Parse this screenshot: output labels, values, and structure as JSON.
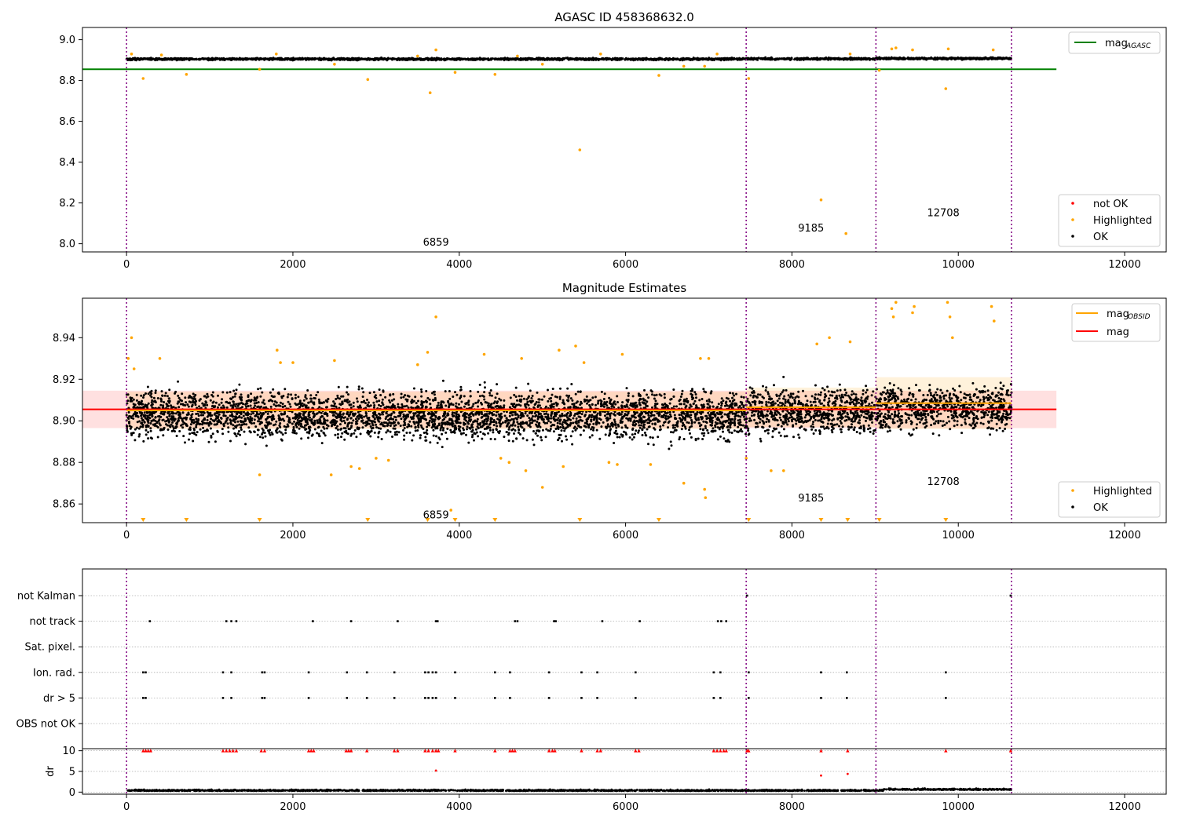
{
  "chart_data": [
    {
      "type": "scatter",
      "title": "AGASC ID 458368632.0",
      "xlim": [
        -530,
        12500
      ],
      "ylim": [
        7.96,
        9.06
      ],
      "xticks": [
        0,
        2000,
        4000,
        6000,
        8000,
        10000,
        12000
      ],
      "xtick_labels": [
        "0",
        "2000",
        "4000",
        "6000",
        "8000",
        "10000",
        "12000"
      ],
      "yticks": [
        8.0,
        8.2,
        8.4,
        8.6,
        8.8,
        9.0
      ],
      "ytick_labels": [
        "8.0",
        "8.2",
        "8.4",
        "8.6",
        "8.8",
        "9.0"
      ],
      "obs_boundaries": [
        0,
        7450,
        9010,
        10640
      ],
      "obsid_labels": [
        {
          "text": "6859",
          "x": 3720,
          "y": 8.01
        },
        {
          "text": "9185",
          "x": 8230,
          "y": 8.08
        },
        {
          "text": "12708",
          "x": 9820,
          "y": 8.155
        }
      ],
      "reference_line": {
        "name": "mag_AGASC",
        "y": 8.855,
        "x": [
          -530,
          11180
        ]
      },
      "series": [
        {
          "name": "not OK",
          "color": "#ff0000",
          "points": []
        },
        {
          "name": "Highlighted",
          "color": "#ffa500",
          "points": [
            [
              60,
              8.93
            ],
            [
              200,
              8.81
            ],
            [
              420,
              8.925
            ],
            [
              720,
              8.83
            ],
            [
              1600,
              8.855
            ],
            [
              1800,
              8.93
            ],
            [
              2500,
              8.88
            ],
            [
              2900,
              8.805
            ],
            [
              3500,
              8.92
            ],
            [
              3650,
              8.74
            ],
            [
              3720,
              8.95
            ],
            [
              3950,
              8.84
            ],
            [
              4430,
              8.83
            ],
            [
              4700,
              8.92
            ],
            [
              5000,
              8.88
            ],
            [
              5450,
              8.46
            ],
            [
              5700,
              8.93
            ],
            [
              6400,
              8.825
            ],
            [
              6700,
              8.87
            ],
            [
              6950,
              8.87
            ],
            [
              7100,
              8.93
            ],
            [
              7480,
              8.81
            ],
            [
              8350,
              8.215
            ],
            [
              8650,
              8.05
            ],
            [
              8700,
              8.93
            ],
            [
              9050,
              8.85
            ],
            [
              9200,
              8.955
            ],
            [
              9250,
              8.96
            ],
            [
              9450,
              8.95
            ],
            [
              9850,
              8.76
            ],
            [
              9880,
              8.955
            ],
            [
              10420,
              8.95
            ]
          ]
        },
        {
          "name": "OK",
          "color": "#000000",
          "band": {
            "center": 8.905,
            "halfwidth": 0.014
          }
        }
      ],
      "legends": [
        {
          "position": "upper-right",
          "entries": [
            {
              "label_main": "mag",
              "label_sub": "AGASC",
              "color": "#008000",
              "kind": "line"
            }
          ]
        },
        {
          "position": "lower-right",
          "entries": [
            {
              "label": "not OK",
              "color": "#ff0000",
              "kind": "dot"
            },
            {
              "label": "Highlighted",
              "color": "#ffa500",
              "kind": "dot"
            },
            {
              "label": "OK",
              "color": "#000000",
              "kind": "dot"
            }
          ]
        }
      ]
    },
    {
      "type": "scatter",
      "title": "Magnitude Estimates",
      "xlim": [
        -530,
        12500
      ],
      "ylim": [
        8.851,
        8.959
      ],
      "xticks": [
        0,
        2000,
        4000,
        6000,
        8000,
        10000,
        12000
      ],
      "xtick_labels": [
        "0",
        "2000",
        "4000",
        "6000",
        "8000",
        "10000",
        "12000"
      ],
      "yticks": [
        8.86,
        8.88,
        8.9,
        8.92,
        8.94
      ],
      "ytick_labels": [
        "8.86",
        "8.88",
        "8.90",
        "8.92",
        "8.94"
      ],
      "obs_boundaries": [
        0,
        7450,
        9010,
        10640
      ],
      "obsid_labels": [
        {
          "text": "6859",
          "x": 3720,
          "y": 8.855
        },
        {
          "text": "9185",
          "x": 8230,
          "y": 8.863
        },
        {
          "text": "12708",
          "x": 9820,
          "y": 8.871
        }
      ],
      "mag": {
        "value": 8.9055,
        "band": [
          8.8965,
          8.9145
        ],
        "x": [
          -530,
          11180
        ]
      },
      "mag_obsid": [
        {
          "x": [
            0,
            7450
          ],
          "value": 8.905,
          "band": [
            8.896,
            8.914
          ]
        },
        {
          "x": [
            7450,
            9010
          ],
          "value": 8.9065,
          "band": [
            8.897,
            8.916
          ]
        },
        {
          "x": [
            9010,
            10640
          ],
          "value": 8.9085,
          "band": [
            8.896,
            8.921
          ]
        }
      ],
      "series": [
        {
          "name": "Highlighted",
          "color": "#ffa500",
          "points": [
            [
              20,
              8.93
            ],
            [
              60,
              8.94
            ],
            [
              90,
              8.925
            ],
            [
              400,
              8.93
            ],
            [
              1600,
              8.874
            ],
            [
              1810,
              8.934
            ],
            [
              1850,
              8.928
            ],
            [
              2000,
              8.928
            ],
            [
              2460,
              8.874
            ],
            [
              2500,
              8.929
            ],
            [
              2700,
              8.878
            ],
            [
              2800,
              8.877
            ],
            [
              3000,
              8.882
            ],
            [
              3150,
              8.881
            ],
            [
              3500,
              8.927
            ],
            [
              3620,
              8.933
            ],
            [
              3720,
              8.95
            ],
            [
              3900,
              8.857
            ],
            [
              4300,
              8.932
            ],
            [
              4500,
              8.882
            ],
            [
              4600,
              8.88
            ],
            [
              4750,
              8.93
            ],
            [
              4800,
              8.876
            ],
            [
              5000,
              8.868
            ],
            [
              5200,
              8.934
            ],
            [
              5250,
              8.878
            ],
            [
              5400,
              8.936
            ],
            [
              5500,
              8.928
            ],
            [
              5800,
              8.88
            ],
            [
              5900,
              8.879
            ],
            [
              5960,
              8.932
            ],
            [
              6300,
              8.879
            ],
            [
              6700,
              8.87
            ],
            [
              6900,
              8.93
            ],
            [
              6950,
              8.867
            ],
            [
              6960,
              8.863
            ],
            [
              7000,
              8.93
            ],
            [
              7450,
              8.882
            ],
            [
              7750,
              8.876
            ],
            [
              7900,
              8.876
            ],
            [
              8300,
              8.937
            ],
            [
              8450,
              8.94
            ],
            [
              8700,
              8.938
            ],
            [
              9200,
              8.954
            ],
            [
              9220,
              8.95
            ],
            [
              9250,
              8.957
            ],
            [
              9450,
              8.952
            ],
            [
              9470,
              8.955
            ],
            [
              9870,
              8.957
            ],
            [
              9900,
              8.95
            ],
            [
              9930,
              8.94
            ],
            [
              10400,
              8.955
            ],
            [
              10430,
              8.948
            ]
          ]
        },
        {
          "name": "OK",
          "color": "#000000",
          "band": {
            "center": 8.903,
            "halfwidth": 0.018
          }
        }
      ],
      "off_scale_markers": [
        200,
        720,
        1600,
        2900,
        3620,
        3950,
        4430,
        5450,
        6400,
        7480,
        8350,
        8670,
        9050,
        9850
      ],
      "legends": [
        {
          "position": "upper-right",
          "entries": [
            {
              "label_main": "mag",
              "label_sub": "OBSID",
              "color": "#ffa500",
              "kind": "line"
            },
            {
              "label_main": "mag",
              "label_sub": "",
              "color": "#ff0000",
              "kind": "line"
            }
          ]
        },
        {
          "position": "lower-right",
          "entries": [
            {
              "label": "Highlighted",
              "color": "#ffa500",
              "kind": "dot"
            },
            {
              "label": "OK",
              "color": "#000000",
              "kind": "dot"
            }
          ]
        }
      ]
    },
    {
      "type": "scatter",
      "title": "",
      "xlim": [
        -530,
        12500
      ],
      "xticks": [
        0,
        2000,
        4000,
        6000,
        8000,
        10000,
        12000
      ],
      "xtick_labels": [
        "0",
        "2000",
        "4000",
        "6000",
        "8000",
        "10000",
        "12000"
      ],
      "obs_boundaries": [
        0,
        7450,
        9010,
        10640
      ],
      "flag_rows": [
        "not Kalman",
        "not track",
        "Sat. pixel.",
        "Ion. rad.",
        "dr > 5",
        "OBS not OK"
      ],
      "flag_events": {
        "not Kalman": [
          7460,
          10630
        ],
        "not track": [
          280,
          1200,
          1260,
          1320,
          2240,
          2700,
          3260,
          3720,
          3740,
          4670,
          4700,
          5140,
          5160,
          5720,
          6170,
          7110,
          7150,
          7210
        ],
        "Sat. pixel.": [],
        "Ion. rad.": [
          200,
          230,
          1160,
          1260,
          1630,
          1660,
          2190,
          2650,
          2890,
          3220,
          3590,
          3630,
          3680,
          3720,
          3950,
          4430,
          4610,
          5080,
          5470,
          5660,
          6120,
          7060,
          7140,
          7480,
          8350,
          8660,
          9850
        ],
        "dr > 5": [
          200,
          230,
          1160,
          1260,
          1630,
          1660,
          2190,
          2650,
          2890,
          3220,
          3590,
          3630,
          3680,
          3720,
          3950,
          4430,
          4610,
          5080,
          5470,
          5660,
          6120,
          7060,
          7140,
          7480,
          8350,
          8660,
          9850
        ],
        "OBS not OK": []
      },
      "dr_panel": {
        "ylabel": "dr",
        "yticks": [
          0,
          5,
          10
        ],
        "ytick_labels": [
          "0",
          "5",
          "10"
        ],
        "ylim": [
          -0.5,
          10.5
        ],
        "clipped_at_10": [
          200,
          230,
          260,
          290,
          1160,
          1200,
          1240,
          1280,
          1320,
          1620,
          1660,
          2190,
          2220,
          2250,
          2640,
          2670,
          2700,
          2890,
          3220,
          3260,
          3590,
          3630,
          3680,
          3720,
          3750,
          3950,
          4430,
          4610,
          4640,
          4670,
          5080,
          5120,
          5150,
          5470,
          5660,
          5700,
          6120,
          6160,
          7060,
          7100,
          7140,
          7180,
          7210,
          7460,
          7480,
          8350,
          8670,
          9850,
          10630
        ],
        "outliers": [
          [
            3720,
            5.2
          ],
          [
            8350,
            4.0
          ],
          [
            8670,
            4.4
          ]
        ],
        "baseline": 0.3
      }
    }
  ]
}
